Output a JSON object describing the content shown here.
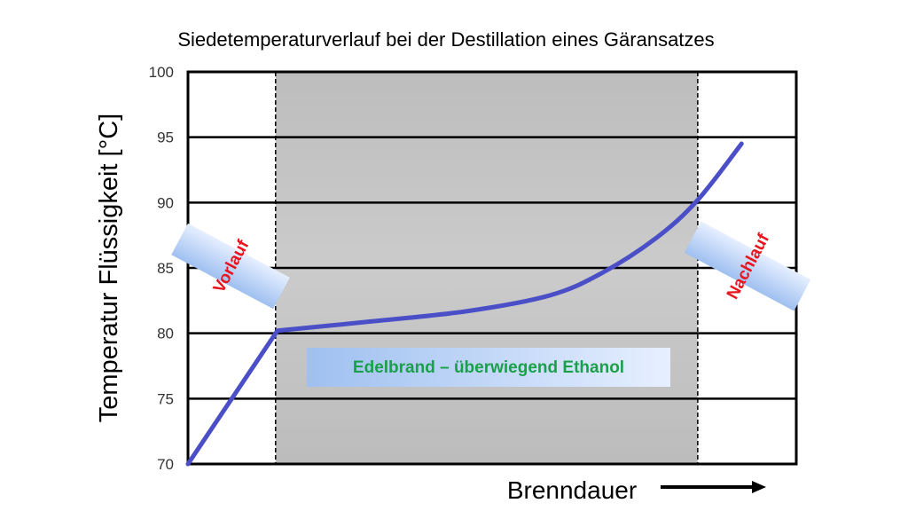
{
  "chart_data": {
    "type": "line",
    "title": "Siedetemperaturverlauf bei der Destillation eines Gäransatzes",
    "xlabel": "Brenndauer",
    "ylabel": "Temperatur Flüssigkeit [°C]",
    "ylim": [
      70,
      100
    ],
    "xlim": [
      0,
      1
    ],
    "yticks": [
      "70",
      "75",
      "80",
      "85",
      "90",
      "95",
      "100"
    ],
    "grid": true,
    "series": [
      {
        "color": "#4a4fc8",
        "x": [
          0,
          0.147,
          0.3,
          0.46,
          0.595,
          0.68,
          0.77,
          0.838,
          0.91
        ],
        "y": [
          70,
          80.2,
          80.9,
          81.7,
          82.9,
          84.6,
          87.3,
          90.2,
          94.5
        ]
      }
    ],
    "regions": [
      {
        "label": "Vorlauf",
        "x": [
          0,
          0.144
        ],
        "color": "#ffffff"
      },
      {
        "label": "Edelbrand – überwiegend Ethanol",
        "x": [
          0.144,
          0.838
        ],
        "color": "#c4c4c4"
      },
      {
        "label": "Nachlauf",
        "x": [
          0.838,
          1
        ],
        "color": "#ffffff"
      }
    ],
    "label_colors": {
      "vorlauf": "#e8141e",
      "nachlauf": "#e8141e",
      "edelbrand": "#1aa04a"
    }
  }
}
